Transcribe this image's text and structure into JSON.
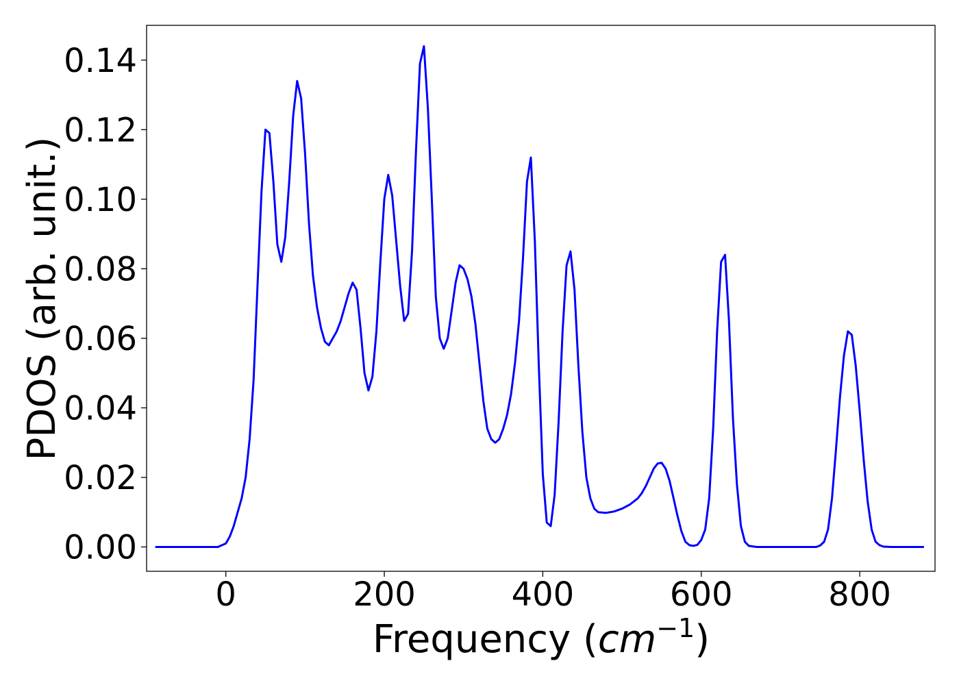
{
  "chart_data": {
    "type": "line",
    "title": "",
    "xlabel": {
      "prefix": "Frequency (",
      "math": "cm",
      "superscript": "−1",
      "suffix": ")"
    },
    "ylabel": "PDOS (arb. unit.)",
    "xlim": [
      -100,
      895
    ],
    "ylim": [
      -0.007,
      0.15
    ],
    "xticks": [
      0,
      200,
      400,
      600,
      800
    ],
    "xtick_labels": [
      "0",
      "200",
      "400",
      "600",
      "800"
    ],
    "yticks": [
      0.0,
      0.02,
      0.04,
      0.06,
      0.08,
      0.1,
      0.12,
      0.14
    ],
    "ytick_labels": [
      "0.00",
      "0.02",
      "0.04",
      "0.06",
      "0.08",
      "0.10",
      "0.12",
      "0.14"
    ],
    "grid": false,
    "legend": "none",
    "series": [
      {
        "color": "#0000ff",
        "x": [
          -88,
          -10,
          0,
          5,
          10,
          15,
          20,
          25,
          30,
          35,
          40,
          45,
          50,
          55,
          60,
          65,
          70,
          75,
          80,
          85,
          90,
          95,
          100,
          105,
          110,
          115,
          120,
          125,
          130,
          135,
          140,
          145,
          150,
          155,
          160,
          165,
          170,
          175,
          180,
          185,
          190,
          195,
          200,
          205,
          210,
          215,
          220,
          225,
          230,
          235,
          240,
          245,
          250,
          255,
          260,
          265,
          270,
          275,
          280,
          285,
          290,
          295,
          300,
          305,
          310,
          315,
          320,
          325,
          330,
          335,
          340,
          345,
          350,
          355,
          360,
          365,
          370,
          375,
          380,
          385,
          390,
          395,
          400,
          405,
          410,
          415,
          420,
          425,
          430,
          435,
          440,
          445,
          450,
          455,
          460,
          465,
          470,
          480,
          490,
          500,
          510,
          520,
          525,
          530,
          535,
          540,
          545,
          550,
          555,
          560,
          565,
          570,
          575,
          580,
          585,
          590,
          595,
          600,
          605,
          610,
          615,
          620,
          625,
          630,
          635,
          640,
          645,
          650,
          655,
          660,
          670,
          740,
          745,
          750,
          755,
          760,
          765,
          770,
          775,
          780,
          785,
          790,
          795,
          800,
          805,
          810,
          815,
          820,
          825,
          830,
          840,
          880
        ],
        "y": [
          0.0,
          0.0,
          0.001,
          0.003,
          0.006,
          0.01,
          0.014,
          0.02,
          0.031,
          0.048,
          0.075,
          0.102,
          0.12,
          0.119,
          0.105,
          0.087,
          0.082,
          0.089,
          0.105,
          0.124,
          0.134,
          0.129,
          0.113,
          0.093,
          0.078,
          0.069,
          0.063,
          0.059,
          0.058,
          0.06,
          0.062,
          0.065,
          0.069,
          0.073,
          0.076,
          0.074,
          0.063,
          0.05,
          0.045,
          0.049,
          0.062,
          0.082,
          0.1,
          0.107,
          0.101,
          0.088,
          0.075,
          0.065,
          0.067,
          0.085,
          0.114,
          0.139,
          0.144,
          0.126,
          0.1,
          0.072,
          0.06,
          0.057,
          0.06,
          0.068,
          0.076,
          0.081,
          0.08,
          0.077,
          0.072,
          0.064,
          0.053,
          0.042,
          0.034,
          0.031,
          0.03,
          0.031,
          0.034,
          0.038,
          0.044,
          0.053,
          0.065,
          0.083,
          0.105,
          0.112,
          0.088,
          0.052,
          0.021,
          0.007,
          0.006,
          0.015,
          0.036,
          0.062,
          0.081,
          0.085,
          0.074,
          0.052,
          0.033,
          0.02,
          0.014,
          0.011,
          0.01,
          0.0098,
          0.0102,
          0.011,
          0.0122,
          0.014,
          0.0155,
          0.0175,
          0.02,
          0.0225,
          0.024,
          0.0242,
          0.0225,
          0.019,
          0.014,
          0.009,
          0.0045,
          0.0015,
          0.0005,
          0.0003,
          0.0006,
          0.002,
          0.005,
          0.014,
          0.034,
          0.062,
          0.082,
          0.084,
          0.065,
          0.037,
          0.018,
          0.006,
          0.0015,
          0.0003,
          0.0,
          0.0,
          0.0,
          0.0004,
          0.0015,
          0.005,
          0.014,
          0.028,
          0.043,
          0.055,
          0.062,
          0.061,
          0.052,
          0.039,
          0.025,
          0.013,
          0.005,
          0.0015,
          0.0005,
          0.0001,
          0.0,
          0.0
        ]
      }
    ]
  }
}
